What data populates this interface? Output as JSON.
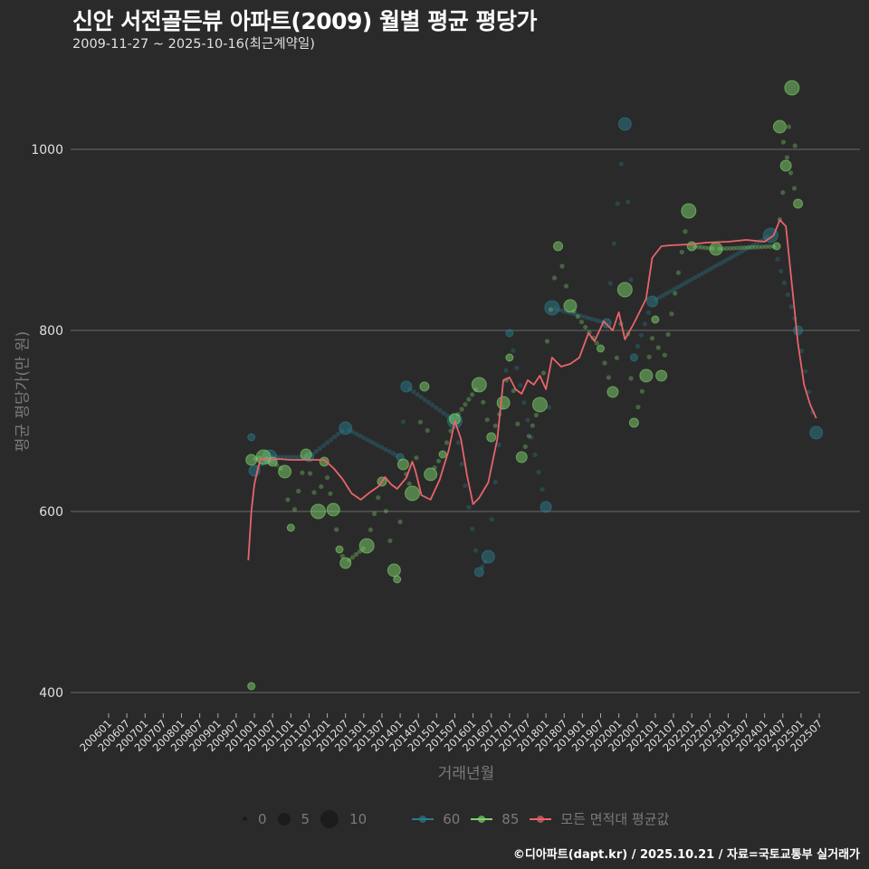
{
  "header": {
    "title": "신안 서전골든뷰 아파트(2009) 월별 평균 평당가",
    "subtitle": "2009-11-27 ~ 2025-10-16(최근계약일)"
  },
  "axes": {
    "y_label": "평균 평당가(만 원)",
    "x_label": "거래년월",
    "y_ticks": [
      "400",
      "600",
      "800",
      "1000"
    ],
    "x_ticks": [
      "200601",
      "200607",
      "200701",
      "200707",
      "200801",
      "200807",
      "200901",
      "200907",
      "201001",
      "201007",
      "201101",
      "201107",
      "201201",
      "201207",
      "201301",
      "201307",
      "201401",
      "201407",
      "201501",
      "201507",
      "201601",
      "201607",
      "201701",
      "201707",
      "201801",
      "201807",
      "201901",
      "201907",
      "202001",
      "202007",
      "202101",
      "202107",
      "202201",
      "202207",
      "202301",
      "202307",
      "202401",
      "202407",
      "202501",
      "202507"
    ]
  },
  "legend": {
    "size_items": [
      {
        "label": "0"
      },
      {
        "label": "5"
      },
      {
        "label": "10"
      }
    ],
    "series_items": [
      {
        "label": "60",
        "color": "#2b7a8a"
      },
      {
        "label": "85",
        "color": "#7ed36b"
      },
      {
        "label": "모든 면적대 평균값",
        "color": "#e8646a"
      }
    ]
  },
  "footer": {
    "credit": "©디아파트(dapt.kr) / 2025.10.21 / 자료=국토교통부 실거래가"
  },
  "chart_data": {
    "type": "line",
    "title": "신안 서전골든뷰 아파트(2009) 월별 평균 평당가",
    "subtitle": "2009-11-27 ~ 2025-10-16(최근계약일)",
    "xlabel": "거래년월",
    "ylabel": "평균 평당가(만 원)",
    "ylim": [
      380,
      1080
    ],
    "grid": true,
    "legend_position": "bottom",
    "series": [
      {
        "name": "모든 면적대 평균값",
        "color": "#e8646a",
        "points": [
          [
            "200911",
            546
          ],
          [
            "200912",
            600
          ],
          [
            "201001",
            630
          ],
          [
            "201002",
            645
          ],
          [
            "201003",
            658
          ],
          [
            "201006",
            657
          ],
          [
            "201009",
            658
          ],
          [
            "201101",
            657
          ],
          [
            "201107",
            657
          ],
          [
            "201112",
            657
          ],
          [
            "201203",
            648
          ],
          [
            "201206",
            636
          ],
          [
            "201209",
            620
          ],
          [
            "201212",
            613
          ],
          [
            "201303",
            621
          ],
          [
            "201306",
            628
          ],
          [
            "201308",
            638
          ],
          [
            "201310",
            630
          ],
          [
            "201312",
            625
          ],
          [
            "201403",
            637
          ],
          [
            "201405",
            655
          ],
          [
            "201406",
            645
          ],
          [
            "201408",
            618
          ],
          [
            "201411",
            613
          ],
          [
            "201502",
            635
          ],
          [
            "201505",
            668
          ],
          [
            "201507",
            700
          ],
          [
            "201509",
            680
          ],
          [
            "201511",
            640
          ],
          [
            "201601",
            608
          ],
          [
            "201603",
            615
          ],
          [
            "201606",
            632
          ],
          [
            "201609",
            680
          ],
          [
            "201611",
            745
          ],
          [
            "201701",
            748
          ],
          [
            "201703",
            735
          ],
          [
            "201705",
            730
          ],
          [
            "201707",
            745
          ],
          [
            "201709",
            740
          ],
          [
            "201711",
            750
          ],
          [
            "201801",
            735
          ],
          [
            "201803",
            770
          ],
          [
            "201806",
            760
          ],
          [
            "201809",
            763
          ],
          [
            "201812",
            770
          ],
          [
            "201903",
            797
          ],
          [
            "201905",
            788
          ],
          [
            "201908",
            810
          ],
          [
            "201911",
            800
          ],
          [
            "202001",
            820
          ],
          [
            "202003",
            790
          ],
          [
            "202006",
            808
          ],
          [
            "202010",
            835
          ],
          [
            "202012",
            880
          ],
          [
            "202103",
            893
          ],
          [
            "202106",
            894
          ],
          [
            "202112",
            895
          ],
          [
            "202206",
            897
          ],
          [
            "202301",
            898
          ],
          [
            "202307",
            900
          ],
          [
            "202401",
            898
          ],
          [
            "202404",
            905
          ],
          [
            "202406",
            922
          ],
          [
            "202408",
            915
          ],
          [
            "202410",
            850
          ],
          [
            "202412",
            785
          ],
          [
            "202502",
            740
          ],
          [
            "202504",
            718
          ],
          [
            "202506",
            703
          ]
        ]
      },
      {
        "name": "60",
        "color": "#2b7a8a",
        "note": "scatter sizes by transaction count; sparse months interpolated with small dots",
        "points": [
          [
            "200912",
            682
          ],
          [
            "201001",
            645
          ],
          [
            "201006",
            660
          ],
          [
            "201107",
            660
          ],
          [
            "201207",
            692
          ],
          [
            "201401",
            660
          ],
          [
            "201403",
            738
          ],
          [
            "201507",
            700
          ],
          [
            "201603",
            533
          ],
          [
            "201606",
            550
          ],
          [
            "201701",
            797
          ],
          [
            "201801",
            605
          ],
          [
            "201803",
            825
          ],
          [
            "201909",
            808
          ],
          [
            "202003",
            1028
          ],
          [
            "202006",
            770
          ],
          [
            "202012",
            832
          ],
          [
            "202403",
            905
          ],
          [
            "202412",
            800
          ],
          [
            "202506",
            687
          ]
        ]
      },
      {
        "name": "85",
        "color": "#7ed36b",
        "points": [
          [
            "200912",
            407
          ],
          [
            "200912",
            657
          ],
          [
            "201004",
            660
          ],
          [
            "201007",
            655
          ],
          [
            "201011",
            644
          ],
          [
            "201101",
            582
          ],
          [
            "201106",
            663
          ],
          [
            "201110",
            600
          ],
          [
            "201112",
            655
          ],
          [
            "201203",
            602
          ],
          [
            "201205",
            558
          ],
          [
            "201207",
            543
          ],
          [
            "201302",
            562
          ],
          [
            "201307",
            633
          ],
          [
            "201311",
            535
          ],
          [
            "201312",
            525
          ],
          [
            "201402",
            652
          ],
          [
            "201405",
            620
          ],
          [
            "201409",
            738
          ],
          [
            "201411",
            641
          ],
          [
            "201503",
            663
          ],
          [
            "201507",
            702
          ],
          [
            "201603",
            740
          ],
          [
            "201607",
            682
          ],
          [
            "201611",
            720
          ],
          [
            "201701",
            770
          ],
          [
            "201705",
            660
          ],
          [
            "201711",
            718
          ],
          [
            "201805",
            893
          ],
          [
            "201809",
            827
          ],
          [
            "201907",
            780
          ],
          [
            "201911",
            732
          ],
          [
            "202003",
            845
          ],
          [
            "202006",
            698
          ],
          [
            "202010",
            750
          ],
          [
            "202101",
            812
          ],
          [
            "202103",
            750
          ],
          [
            "202112",
            932
          ],
          [
            "202201",
            893
          ],
          [
            "202209",
            890
          ],
          [
            "202405",
            893
          ],
          [
            "202408",
            982
          ],
          [
            "202410",
            1068
          ],
          [
            "202412",
            940
          ],
          [
            "202406",
            1025
          ]
        ]
      }
    ]
  }
}
